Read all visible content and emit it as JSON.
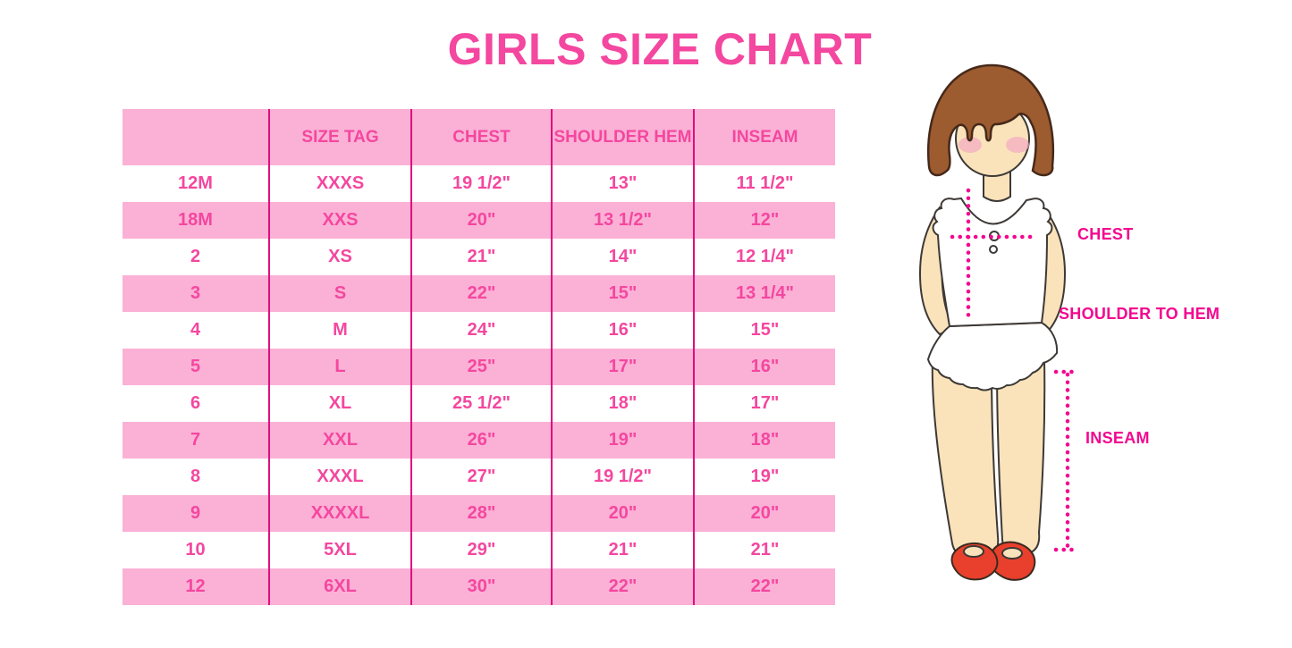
{
  "title": "GIRLS SIZE CHART",
  "colors": {
    "table_text": "#F4479F",
    "stripe": "#FBB1D6",
    "divider": "#DE0E7E",
    "label_text": "#F3078F",
    "skin": "#FAE3BB",
    "hair": "#9D5B30",
    "blush": "#F2A9C2",
    "shoe": "#E8402C",
    "outline": "#3D3936"
  },
  "table": {
    "columns": [
      "",
      "SIZE TAG",
      "CHEST",
      "SHOULDER HEM",
      "INSEAM"
    ],
    "rows": [
      [
        "12M",
        "XXXS",
        "19 1/2\"",
        "13\"",
        "11 1/2\""
      ],
      [
        "18M",
        "XXS",
        "20\"",
        "13 1/2\"",
        "12\""
      ],
      [
        "2",
        "XS",
        "21\"",
        "14\"",
        "12 1/4\""
      ],
      [
        "3",
        "S",
        "22\"",
        "15\"",
        "13 1/4\""
      ],
      [
        "4",
        "M",
        "24\"",
        "16\"",
        "15\""
      ],
      [
        "5",
        "L",
        "25\"",
        "17\"",
        "16\""
      ],
      [
        "6",
        "XL",
        "25 1/2\"",
        "18\"",
        "17\""
      ],
      [
        "7",
        "XXL",
        "26\"",
        "19\"",
        "18\""
      ],
      [
        "8",
        "XXXL",
        "27\"",
        "19 1/2\"",
        "19\""
      ],
      [
        "9",
        "XXXXL",
        "28\"",
        "20\"",
        "20\""
      ],
      [
        "10",
        "5XL",
        "29\"",
        "21\"",
        "21\""
      ],
      [
        "12",
        "6XL",
        "30\"",
        "22\"",
        "22\""
      ]
    ]
  },
  "figure": {
    "labels": {
      "chest": "CHEST",
      "shoulder_to_hem": "SHOULDER TO HEM",
      "inseam": "INSEAM"
    }
  },
  "chart_data": {
    "type": "table",
    "title": "GIRLS SIZE CHART",
    "columns": [
      "",
      "SIZE TAG",
      "CHEST",
      "SHOULDER HEM",
      "INSEAM"
    ],
    "rows": [
      [
        "12M",
        "XXXS",
        "19 1/2\"",
        "13\"",
        "11 1/2\""
      ],
      [
        "18M",
        "XXS",
        "20\"",
        "13 1/2\"",
        "12\""
      ],
      [
        "2",
        "XS",
        "21\"",
        "14\"",
        "12 1/4\""
      ],
      [
        "3",
        "S",
        "22\"",
        "15\"",
        "13 1/4\""
      ],
      [
        "4",
        "M",
        "24\"",
        "16\"",
        "15\""
      ],
      [
        "5",
        "L",
        "25\"",
        "17\"",
        "16\""
      ],
      [
        "6",
        "XL",
        "25 1/2\"",
        "18\"",
        "17\""
      ],
      [
        "7",
        "XXL",
        "26\"",
        "19\"",
        "18\""
      ],
      [
        "8",
        "XXXL",
        "27\"",
        "19 1/2\"",
        "19\""
      ],
      [
        "9",
        "XXXXL",
        "28\"",
        "20\"",
        "20\""
      ],
      [
        "10",
        "5XL",
        "29\"",
        "21\"",
        "21\""
      ],
      [
        "12",
        "6XL",
        "30\"",
        "22\"",
        "22\""
      ]
    ],
    "layout": {
      "alternating_row_colors": [
        "#FFFFFF",
        "#FBB1D6"
      ],
      "legend": "none",
      "grid": "vertical-dividers-only"
    }
  }
}
